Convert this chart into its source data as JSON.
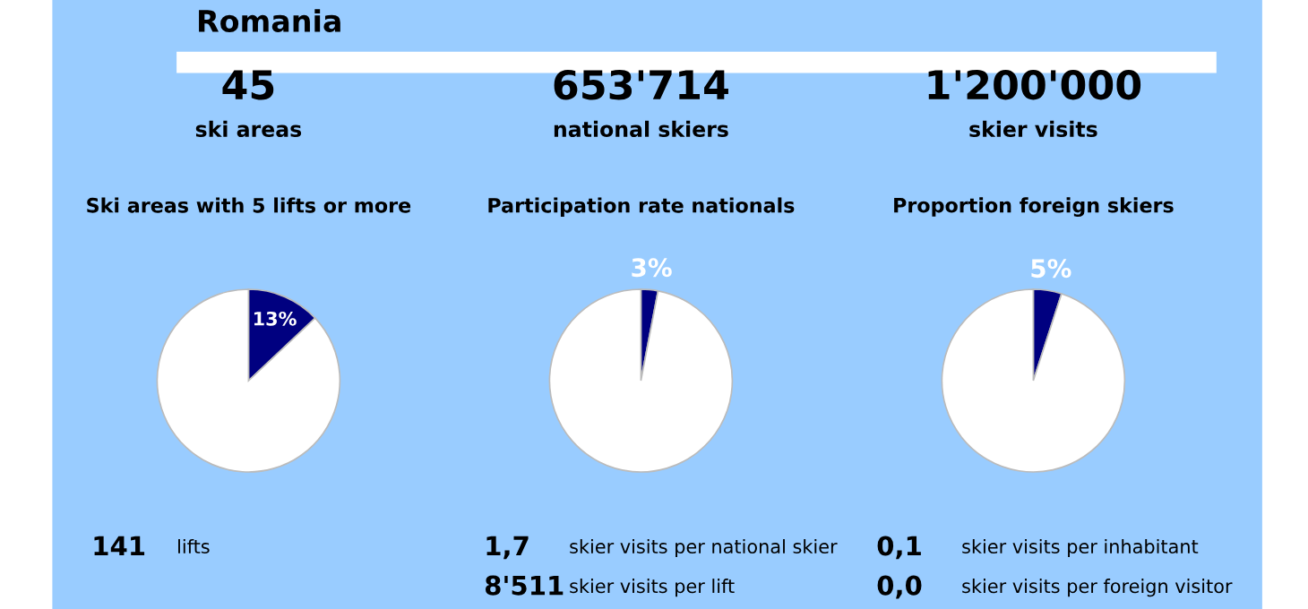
{
  "chart_data": [
    {
      "type": "other",
      "title": "Romania"
    },
    {
      "type": "pie",
      "title": "Ski areas with 5 lifts or more",
      "categories": [
        null,
        null
      ],
      "values": [
        13,
        87
      ],
      "colors": [
        "#000080",
        "#ffffff"
      ],
      "value_labels": [
        "13%",
        null
      ],
      "annotations": [
        "45",
        "ski areas",
        "141",
        "lifts"
      ]
    },
    {
      "type": "pie",
      "title": "Participation rate nationals",
      "categories": [
        null,
        null
      ],
      "values": [
        3,
        97
      ],
      "colors": [
        "#000080",
        "#ffffff"
      ],
      "value_labels": [
        "3%",
        null
      ],
      "annotations": [
        "653'714",
        "national skiers",
        "1,7",
        "skier visits per national skier",
        "8'511",
        "skier visits per lift"
      ]
    },
    {
      "type": "pie",
      "title": "Proportion foreign skiers",
      "categories": [
        null,
        null
      ],
      "values": [
        5,
        95
      ],
      "colors": [
        "#000080",
        "#ffffff"
      ],
      "value_labels": [
        "5%",
        null
      ],
      "annotations": [
        "1'200'000",
        "skier visits",
        "0,1",
        "skier visits per inhabitant",
        "0,0",
        "skier visits per foreign visitor"
      ]
    }
  ]
}
